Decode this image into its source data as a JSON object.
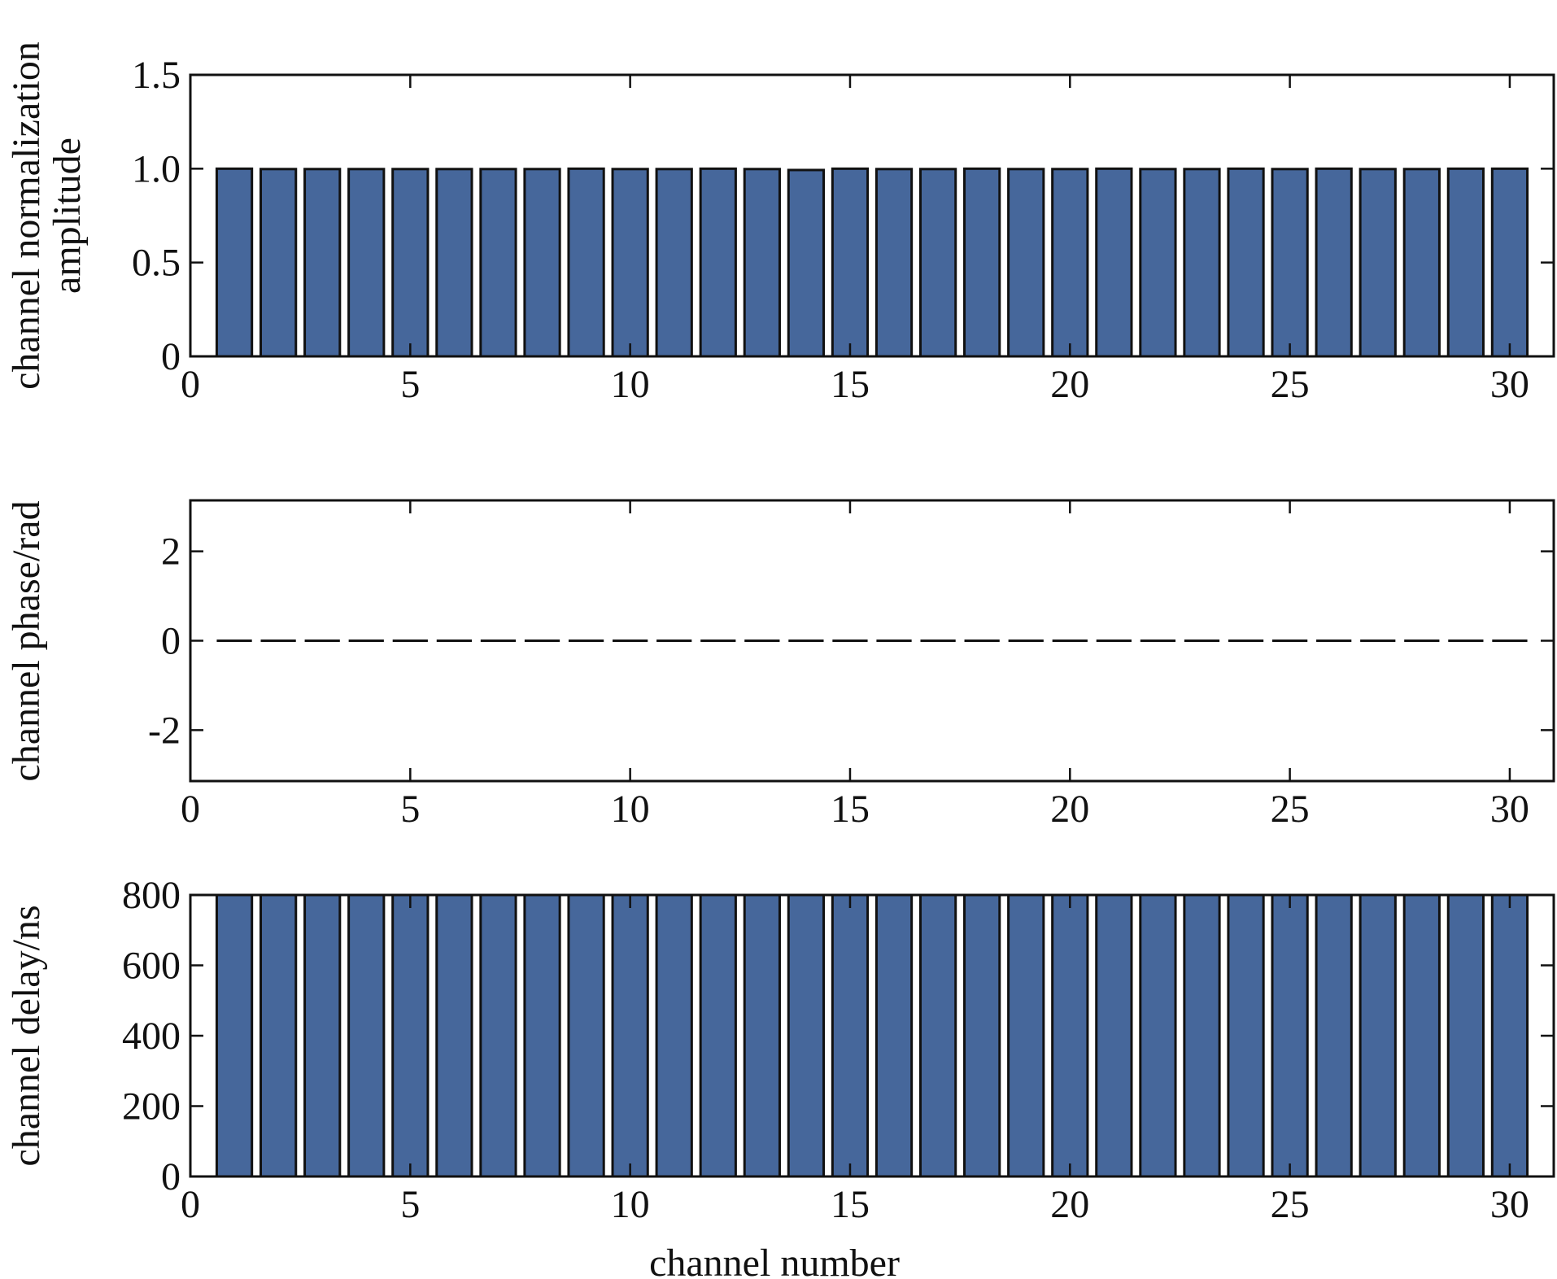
{
  "chart_data": [
    {
      "type": "bar",
      "x": [
        1,
        2,
        3,
        4,
        5,
        6,
        7,
        8,
        9,
        10,
        11,
        12,
        13,
        14,
        15,
        16,
        17,
        18,
        19,
        20,
        21,
        22,
        23,
        24,
        25,
        26,
        27,
        28,
        29,
        30
      ],
      "values": [
        1.0,
        0.998,
        0.998,
        0.998,
        0.998,
        0.998,
        0.998,
        0.998,
        1.0,
        0.998,
        0.998,
        1.0,
        0.998,
        0.993,
        1.0,
        0.998,
        0.998,
        1.0,
        0.998,
        0.998,
        1.0,
        0.998,
        0.998,
        1.0,
        0.998,
        1.0,
        0.998,
        0.998,
        1.0,
        1.0
      ],
      "ylabel_lines": [
        "channel normalization",
        "amplitude"
      ],
      "xlim": [
        0,
        31
      ],
      "ylim": [
        0,
        1.5
      ],
      "xticks": [
        "0",
        "5",
        "10",
        "15",
        "20",
        "25",
        "30"
      ],
      "yticks": [
        "0",
        "0.5",
        "1.0",
        "1.5"
      ],
      "color": "#46679b"
    },
    {
      "type": "bar",
      "x": [
        1,
        2,
        3,
        4,
        5,
        6,
        7,
        8,
        9,
        10,
        11,
        12,
        13,
        14,
        15,
        16,
        17,
        18,
        19,
        20,
        21,
        22,
        23,
        24,
        25,
        26,
        27,
        28,
        29,
        30
      ],
      "values": [
        0,
        0,
        0,
        0,
        0,
        0,
        0,
        0,
        0,
        0,
        0,
        0,
        0,
        0,
        0,
        0,
        0,
        0,
        0,
        0,
        0,
        0,
        0,
        0,
        0,
        0,
        0,
        0,
        0,
        0
      ],
      "ylabel_lines": [
        "channel phase/rad"
      ],
      "xlim": [
        0,
        31
      ],
      "ylim": [
        -3.14,
        3.14
      ],
      "xticks": [
        "0",
        "5",
        "10",
        "15",
        "20",
        "25",
        "30"
      ],
      "yticks": [
        "-2",
        "0",
        "2"
      ],
      "color": "#46679b"
    },
    {
      "type": "bar",
      "x": [
        1,
        2,
        3,
        4,
        5,
        6,
        7,
        8,
        9,
        10,
        11,
        12,
        13,
        14,
        15,
        16,
        17,
        18,
        19,
        20,
        21,
        22,
        23,
        24,
        25,
        26,
        27,
        28,
        29,
        30
      ],
      "values": [
        800,
        800,
        800,
        800,
        800,
        800,
        800,
        800,
        800,
        800,
        800,
        800,
        800,
        800,
        800,
        800,
        800,
        800,
        800,
        800,
        800,
        800,
        800,
        800,
        800,
        800,
        800,
        800,
        800,
        800
      ],
      "ylabel_lines": [
        "channel delay/ns"
      ],
      "xlabel": "channel number",
      "xlim": [
        0,
        31
      ],
      "ylim": [
        0,
        800
      ],
      "xticks": [
        "0",
        "5",
        "10",
        "15",
        "20",
        "25",
        "30"
      ],
      "yticks": [
        "0",
        "200",
        "400",
        "600",
        "800"
      ],
      "color": "#46679b"
    }
  ]
}
